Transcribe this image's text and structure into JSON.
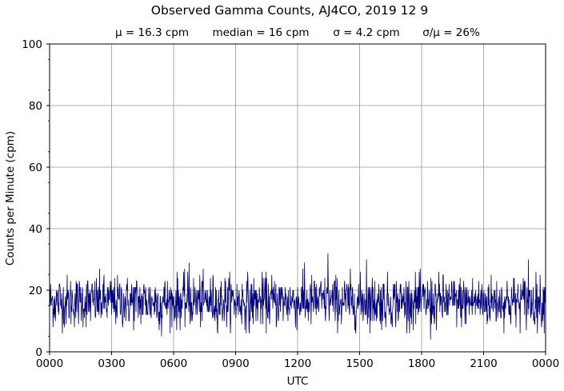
{
  "chart_data": {
    "type": "line",
    "title": "Observed Gamma Counts, AJ4CO, 2019 12 9",
    "stats": {
      "mean": "μ = 16.3 cpm",
      "median": "median = 16 cpm",
      "sigma": "σ = 4.2 cpm",
      "ratio": "σ/μ = 26%"
    },
    "xlabel": "UTC",
    "ylabel": "Counts per Minute (cpm)",
    "x_tick_labels": [
      "0000",
      "0300",
      "0600",
      "0900",
      "1200",
      "1500",
      "1800",
      "2100",
      "0000"
    ],
    "y_tick_labels": [
      "0",
      "20",
      "40",
      "60",
      "80",
      "100"
    ],
    "xlim_minutes": [
      0,
      1440
    ],
    "ylim": [
      0,
      100
    ],
    "grid": true,
    "series": [
      {
        "color": "#000080",
        "sampling": "one value per minute (1440 points), noisy around mean 16.3, min ~4, max ~32",
        "peaks": [
          {
            "minute": 405,
            "value": 29
          },
          {
            "minute": 740,
            "value": 29
          },
          {
            "minute": 808,
            "value": 32
          },
          {
            "minute": 920,
            "value": 30
          },
          {
            "minute": 1390,
            "value": 30
          }
        ],
        "troughs": [
          {
            "minute": 1106,
            "value": 4
          },
          {
            "minute": 325,
            "value": 5
          },
          {
            "minute": 580,
            "value": 6
          }
        ]
      }
    ]
  },
  "colors": {
    "line": "#000080",
    "grid": "#999999",
    "axes": "#000000"
  }
}
